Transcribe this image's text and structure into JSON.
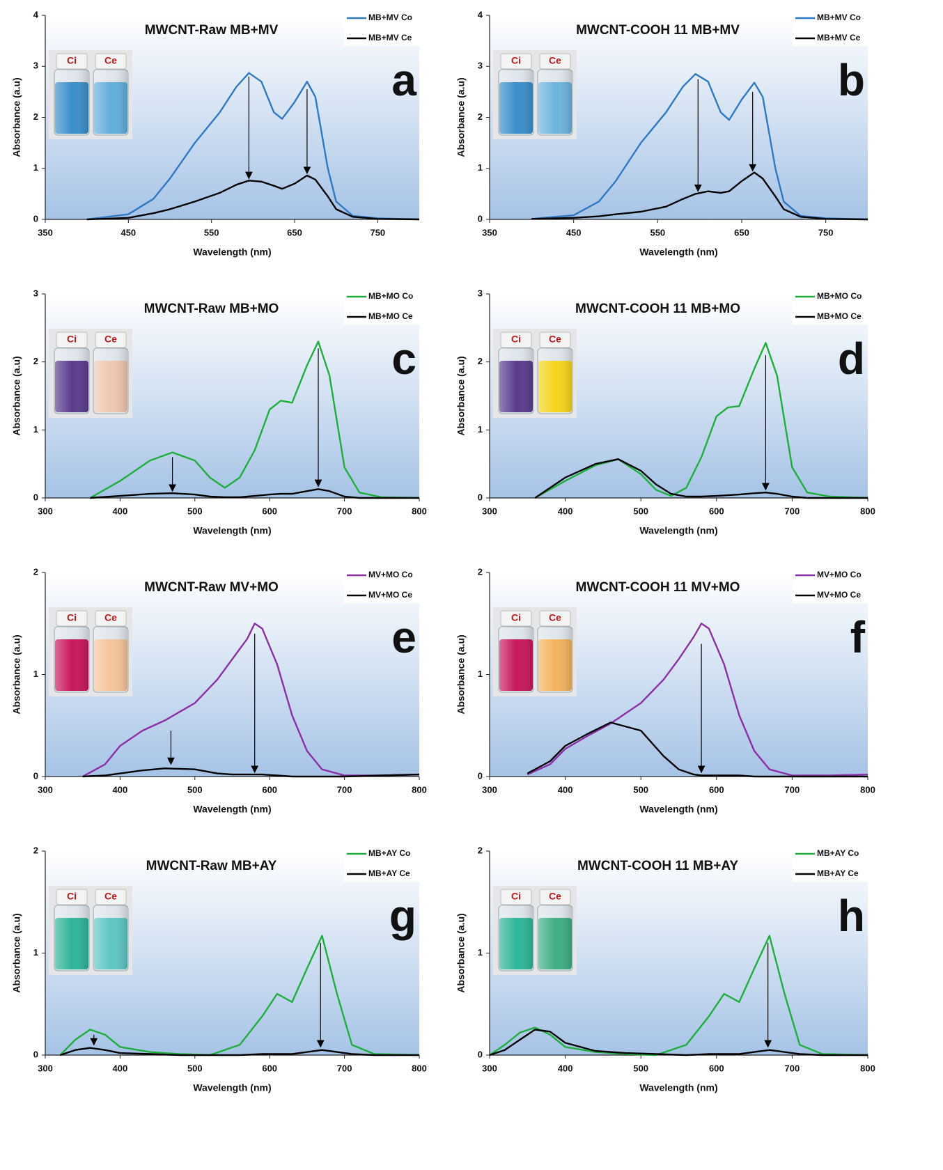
{
  "chart_data": [
    {
      "type": "line",
      "title": "MWCNT-Raw MB+MV",
      "annotation": "a",
      "x_label": "Wavelength (nm)",
      "y_label": "Absorbance (a.u)",
      "x": [
        400,
        450,
        480,
        500,
        530,
        560,
        580,
        595,
        610,
        625,
        635,
        650,
        665,
        675,
        690,
        700,
        720,
        750,
        800
      ],
      "series": [
        {
          "name": "MB+MV Co",
          "color": "#2f78c4",
          "values": [
            0,
            0.1,
            0.4,
            0.8,
            1.5,
            2.1,
            2.6,
            2.87,
            2.7,
            2.1,
            1.97,
            2.3,
            2.7,
            2.4,
            1.0,
            0.35,
            0.07,
            0.02,
            0
          ]
        },
        {
          "name": "MB+MV Ce",
          "color": "#000000",
          "values": [
            0,
            0.03,
            0.12,
            0.2,
            0.35,
            0.52,
            0.68,
            0.76,
            0.74,
            0.66,
            0.6,
            0.7,
            0.86,
            0.78,
            0.45,
            0.2,
            0.05,
            0.01,
            0
          ]
        }
      ],
      "xlim": [
        350,
        800
      ],
      "ylim": [
        0,
        4
      ],
      "xticks": [
        350,
        450,
        550,
        650,
        750
      ],
      "yticks": [
        0,
        1,
        2,
        3,
        4
      ],
      "legend": "upper right",
      "inset": {
        "labels": [
          "Ci",
          "Ce"
        ],
        "colors": [
          "#3b8fcb",
          "#62aedb"
        ]
      },
      "arrows": [
        {
          "x": 595,
          "y": [
            2.8,
            0.8
          ]
        },
        {
          "x": 665,
          "y": [
            2.55,
            0.9
          ]
        }
      ]
    },
    {
      "type": "line",
      "title": "MWCNT-COOH 11 MB+MV",
      "annotation": "b",
      "x_label": "Wavelength (nm)",
      "y_label": "Absorbance (a.u)",
      "x": [
        400,
        450,
        480,
        500,
        530,
        560,
        580,
        595,
        610,
        625,
        635,
        650,
        665,
        675,
        690,
        700,
        720,
        750,
        800
      ],
      "series": [
        {
          "name": "MB+MV Co",
          "color": "#2f78c4",
          "values": [
            0.01,
            0.08,
            0.35,
            0.75,
            1.5,
            2.1,
            2.6,
            2.85,
            2.7,
            2.1,
            1.95,
            2.35,
            2.68,
            2.4,
            1.0,
            0.35,
            0.07,
            0.02,
            0
          ]
        },
        {
          "name": "MB+MV Ce",
          "color": "#000000",
          "values": [
            0.01,
            0.03,
            0.06,
            0.1,
            0.15,
            0.25,
            0.4,
            0.5,
            0.55,
            0.52,
            0.55,
            0.75,
            0.92,
            0.8,
            0.45,
            0.2,
            0.05,
            0.01,
            0
          ]
        }
      ],
      "xlim": [
        350,
        800
      ],
      "ylim": [
        0,
        4
      ],
      "xticks": [
        350,
        450,
        550,
        650,
        750
      ],
      "yticks": [
        0,
        1,
        2,
        3,
        4
      ],
      "legend": "upper right",
      "inset": {
        "labels": [
          "Ci",
          "Ce"
        ],
        "colors": [
          "#3b8fcb",
          "#6cb4de"
        ]
      },
      "arrows": [
        {
          "x": 598,
          "y": [
            2.75,
            0.55
          ]
        },
        {
          "x": 663,
          "y": [
            2.5,
            0.95
          ]
        }
      ]
    },
    {
      "type": "line",
      "title": "MWCNT-Raw MB+MO",
      "annotation": "c",
      "x_label": "Wavelength (nm)",
      "y_label": "Absorbance (a.u)",
      "x": [
        360,
        400,
        440,
        470,
        500,
        520,
        540,
        560,
        580,
        600,
        615,
        630,
        650,
        665,
        680,
        700,
        720,
        750,
        800
      ],
      "series": [
        {
          "name": "MB+MO Co",
          "color": "#1fae3c",
          "values": [
            0,
            0.25,
            0.55,
            0.67,
            0.55,
            0.3,
            0.15,
            0.3,
            0.7,
            1.3,
            1.43,
            1.4,
            1.95,
            2.3,
            1.8,
            0.45,
            0.08,
            0.01,
            0
          ]
        },
        {
          "name": "MB+MO Ce",
          "color": "#000000",
          "values": [
            0,
            0.03,
            0.06,
            0.07,
            0.05,
            0.02,
            0.01,
            0.01,
            0.03,
            0.05,
            0.06,
            0.06,
            0.1,
            0.13,
            0.1,
            0.02,
            0,
            0,
            0
          ]
        }
      ],
      "xlim": [
        300,
        800
      ],
      "ylim": [
        0,
        3
      ],
      "xticks": [
        300,
        400,
        500,
        600,
        700,
        800
      ],
      "yticks": [
        0,
        1,
        2,
        3
      ],
      "legend": "upper right",
      "inset": {
        "labels": [
          "Ci",
          "Ce"
        ],
        "colors": [
          "#5a3c8e",
          "#f0c7b0"
        ]
      },
      "arrows": [
        {
          "x": 470,
          "y": [
            0.6,
            0.1
          ]
        },
        {
          "x": 665,
          "y": [
            2.2,
            0.17
          ]
        }
      ]
    },
    {
      "type": "line",
      "title": "MWCNT-COOH 11 MB+MO",
      "annotation": "d",
      "x_label": "Wavelength (nm)",
      "y_label": "Absorbance (a.u)",
      "x": [
        360,
        400,
        440,
        470,
        500,
        520,
        540,
        560,
        580,
        600,
        615,
        630,
        650,
        665,
        680,
        700,
        720,
        750,
        800
      ],
      "series": [
        {
          "name": "MB+MO Co",
          "color": "#1fae3c",
          "values": [
            0,
            0.25,
            0.48,
            0.57,
            0.35,
            0.12,
            0.03,
            0.15,
            0.6,
            1.2,
            1.33,
            1.35,
            1.9,
            2.28,
            1.8,
            0.45,
            0.08,
            0.02,
            0
          ]
        },
        {
          "name": "MB+MO Ce",
          "color": "#000000",
          "values": [
            0,
            0.3,
            0.5,
            0.57,
            0.4,
            0.2,
            0.06,
            0.02,
            0.02,
            0.03,
            0.04,
            0.05,
            0.07,
            0.08,
            0.06,
            0.02,
            0,
            0,
            0
          ]
        }
      ],
      "xlim": [
        300,
        800
      ],
      "ylim": [
        0,
        3
      ],
      "xticks": [
        300,
        400,
        500,
        600,
        700,
        800
      ],
      "yticks": [
        0,
        1,
        2,
        3
      ],
      "legend": "upper right",
      "inset": {
        "labels": [
          "Ci",
          "Ce"
        ],
        "colors": [
          "#5a3c8e",
          "#f5d51c"
        ]
      },
      "arrows": [
        {
          "x": 665,
          "y": [
            2.1,
            0.12
          ]
        }
      ]
    },
    {
      "type": "line",
      "title": "MWCNT-Raw MV+MO",
      "annotation": "e",
      "x_label": "Wavelength (nm)",
      "y_label": "Absorbance (a.u)",
      "x": [
        350,
        380,
        400,
        430,
        460,
        500,
        530,
        550,
        570,
        580,
        590,
        610,
        630,
        650,
        670,
        700,
        750,
        800
      ],
      "series": [
        {
          "name": "MV+MO Co",
          "color": "#8b2fa6",
          "values": [
            0,
            0.12,
            0.3,
            0.45,
            0.55,
            0.72,
            0.95,
            1.15,
            1.35,
            1.5,
            1.45,
            1.1,
            0.6,
            0.25,
            0.07,
            0.01,
            0.01,
            0.02
          ]
        },
        {
          "name": "MV+MO Ce",
          "color": "#000000",
          "values": [
            0,
            0.01,
            0.03,
            0.06,
            0.08,
            0.07,
            0.03,
            0.02,
            0.02,
            0.02,
            0.02,
            0.01,
            0,
            0,
            0,
            0,
            0.01,
            0.02
          ]
        }
      ],
      "xlim": [
        300,
        800
      ],
      "ylim": [
        0,
        2
      ],
      "xticks": [
        300,
        400,
        500,
        600,
        700,
        800
      ],
      "yticks": [
        0,
        1,
        2
      ],
      "legend": "upper right",
      "inset": {
        "labels": [
          "Ci",
          "Ce"
        ],
        "colors": [
          "#c8185e",
          "#f6c59a"
        ]
      },
      "arrows": [
        {
          "x": 468,
          "y": [
            0.45,
            0.12
          ]
        },
        {
          "x": 580,
          "y": [
            1.4,
            0.04
          ]
        }
      ]
    },
    {
      "type": "line",
      "title": "MWCNT-COOH 11 MV+MO",
      "annotation": "f",
      "x_label": "Wavelength (nm)",
      "y_label": "Absorbance (a.u)",
      "x": [
        350,
        380,
        400,
        430,
        460,
        500,
        530,
        550,
        570,
        580,
        590,
        610,
        630,
        650,
        670,
        700,
        750,
        800
      ],
      "series": [
        {
          "name": "MV+MO Co",
          "color": "#8b2fa6",
          "values": [
            0.02,
            0.12,
            0.27,
            0.4,
            0.52,
            0.72,
            0.95,
            1.15,
            1.37,
            1.5,
            1.45,
            1.1,
            0.6,
            0.25,
            0.07,
            0.01,
            0.01,
            0.02
          ]
        },
        {
          "name": "MV+MO Ce",
          "color": "#000000",
          "values": [
            0.03,
            0.15,
            0.3,
            0.42,
            0.53,
            0.45,
            0.2,
            0.07,
            0.02,
            0.01,
            0.01,
            0.01,
            0.01,
            0,
            0,
            0,
            0,
            0
          ]
        }
      ],
      "xlim": [
        300,
        800
      ],
      "ylim": [
        0,
        2
      ],
      "xticks": [
        300,
        400,
        500,
        600,
        700,
        800
      ],
      "yticks": [
        0,
        1,
        2
      ],
      "legend": "upper right",
      "inset": {
        "labels": [
          "Ci",
          "Ce"
        ],
        "colors": [
          "#c8185e",
          "#f4b45e"
        ]
      },
      "arrows": [
        {
          "x": 580,
          "y": [
            1.3,
            0.04
          ]
        }
      ]
    },
    {
      "type": "line",
      "title": "MWCNT-Raw MB+AY",
      "annotation": "g",
      "x_label": "Wavelength (nm)",
      "y_label": "Absorbance (a.u)",
      "x": [
        320,
        340,
        360,
        380,
        400,
        440,
        480,
        520,
        560,
        590,
        610,
        630,
        650,
        670,
        690,
        710,
        740,
        800
      ],
      "series": [
        {
          "name": "MB+AY Co",
          "color": "#1fae3c",
          "values": [
            0,
            0.15,
            0.25,
            0.2,
            0.08,
            0.03,
            0.01,
            0,
            0.1,
            0.38,
            0.6,
            0.52,
            0.85,
            1.17,
            0.6,
            0.1,
            0.01,
            0
          ]
        },
        {
          "name": "MB+AY Ce",
          "color": "#000000",
          "values": [
            0,
            0.05,
            0.07,
            0.05,
            0.02,
            0.01,
            0,
            0,
            0,
            0.01,
            0.01,
            0.01,
            0.03,
            0.05,
            0.03,
            0.01,
            0,
            0
          ]
        }
      ],
      "xlim": [
        300,
        800
      ],
      "ylim": [
        0,
        2
      ],
      "xticks": [
        300,
        400,
        500,
        600,
        700,
        800
      ],
      "yticks": [
        0,
        1,
        2
      ],
      "legend": "upper right",
      "inset": {
        "labels": [
          "Ci",
          "Ce"
        ],
        "colors": [
          "#2fb59a",
          "#5cc6c4"
        ]
      },
      "arrows": [
        {
          "x": 365,
          "y": [
            0.2,
            0.1
          ]
        },
        {
          "x": 668,
          "y": [
            1.1,
            0.08
          ]
        }
      ]
    },
    {
      "type": "line",
      "title": "MWCNT-COOH 11 MB+AY",
      "annotation": "h",
      "x_label": "Wavelength (nm)",
      "y_label": "Absorbance (a.u)",
      "x": [
        300,
        320,
        340,
        360,
        380,
        400,
        440,
        480,
        520,
        560,
        590,
        610,
        630,
        650,
        670,
        690,
        710,
        740,
        800
      ],
      "series": [
        {
          "name": "MB+AY Co",
          "color": "#1fae3c",
          "values": [
            0,
            0.1,
            0.22,
            0.27,
            0.2,
            0.08,
            0.03,
            0.01,
            0,
            0.1,
            0.38,
            0.6,
            0.52,
            0.85,
            1.17,
            0.6,
            0.1,
            0.01,
            0
          ]
        },
        {
          "name": "MB+AY Ce",
          "color": "#000000",
          "values": [
            0,
            0.05,
            0.15,
            0.25,
            0.23,
            0.12,
            0.04,
            0.02,
            0.01,
            0,
            0.01,
            0.01,
            0.01,
            0.03,
            0.05,
            0.03,
            0.01,
            0,
            0
          ]
        }
      ],
      "xlim": [
        300,
        800
      ],
      "ylim": [
        0,
        2
      ],
      "xticks": [
        300,
        400,
        500,
        600,
        700,
        800
      ],
      "yticks": [
        0,
        1,
        2
      ],
      "legend": "upper right",
      "inset": {
        "labels": [
          "Ci",
          "Ce"
        ],
        "colors": [
          "#2fb59a",
          "#3fae84"
        ]
      },
      "arrows": [
        {
          "x": 668,
          "y": [
            1.1,
            0.08
          ]
        }
      ]
    }
  ]
}
